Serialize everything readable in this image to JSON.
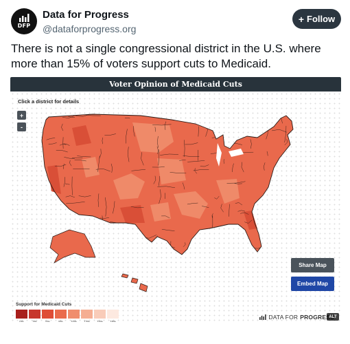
{
  "account": {
    "name": "Data for Progress",
    "handle": "@dataforprogress.org",
    "avatar_text": "DFP"
  },
  "follow_button": {
    "label": "Follow",
    "icon": "plus"
  },
  "tweet": {
    "text": "There is not a single congressional district in the U.S. where more than 15% of voters support cuts to Medicaid."
  },
  "map": {
    "title": "Voter Opinion of Medicaid Cuts",
    "click_hint": "Click a district for details",
    "zoom_in": "+",
    "zoom_out": "-",
    "share_label": "Share Map",
    "embed_label": "Embed Map",
    "brand_icon": "bar-chart-icon",
    "brand_light": "DATA FOR",
    "brand_bold": "PROGRESS",
    "alt_badge": "ALT",
    "legend_title": "Support for Medicaid Cuts",
    "legend": [
      {
        "label": "0%",
        "color": "#a81f1c"
      },
      {
        "label": "3%",
        "color": "#c7372c"
      },
      {
        "label": "5%",
        "color": "#df4d36"
      },
      {
        "label": "8%",
        "color": "#ea6b4c"
      },
      {
        "label": "10%",
        "color": "#f08d6d"
      },
      {
        "label": "13%",
        "color": "#f5ae93"
      },
      {
        "label": "15%",
        "color": "#f9ccb9"
      },
      {
        "label": "18%",
        "color": "#fde9e0"
      }
    ],
    "land_color": "#e9694c",
    "light_region_color": "#ef8a69",
    "dark_region_color": "#d94f37",
    "border_color": "#2b1a15"
  }
}
